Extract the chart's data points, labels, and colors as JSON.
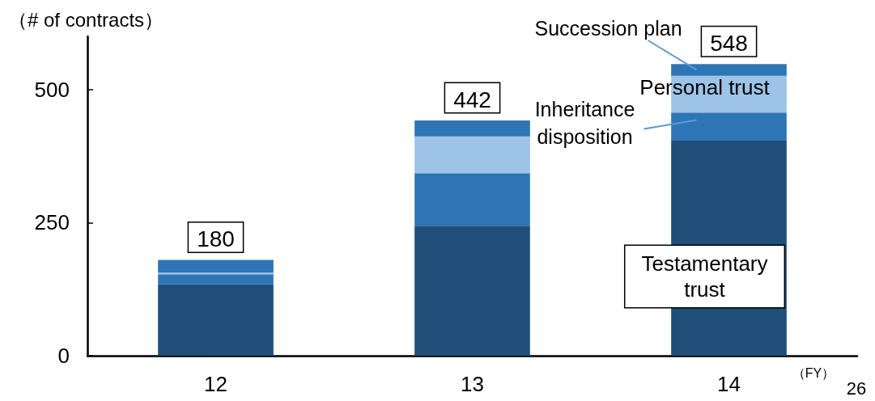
{
  "chart_data": {
    "type": "bar",
    "stacked": true,
    "ylabel": "（# of contracts）",
    "xlabel": "（FY）",
    "categories": [
      "12",
      "13",
      "14"
    ],
    "series": [
      {
        "name": "Testamentary trust",
        "color": "#1f4e79",
        "values": [
          134,
          244,
          404
        ]
      },
      {
        "name": "Inheritance disposition",
        "color": "#2e75b6",
        "values": [
          19,
          99,
          53
        ]
      },
      {
        "name": "Personal trust",
        "color": "#9dc3e6",
        "values": [
          3,
          69,
          69
        ]
      },
      {
        "name": "Succession plan",
        "color": "#2e75b6",
        "values": [
          24,
          30,
          22
        ]
      }
    ],
    "totals": [
      "180",
      "442",
      "548"
    ],
    "ylim": [
      0,
      600
    ],
    "yticks": [
      0,
      250,
      500
    ],
    "grid": false,
    "legend": false,
    "annotations": [
      "26"
    ]
  }
}
